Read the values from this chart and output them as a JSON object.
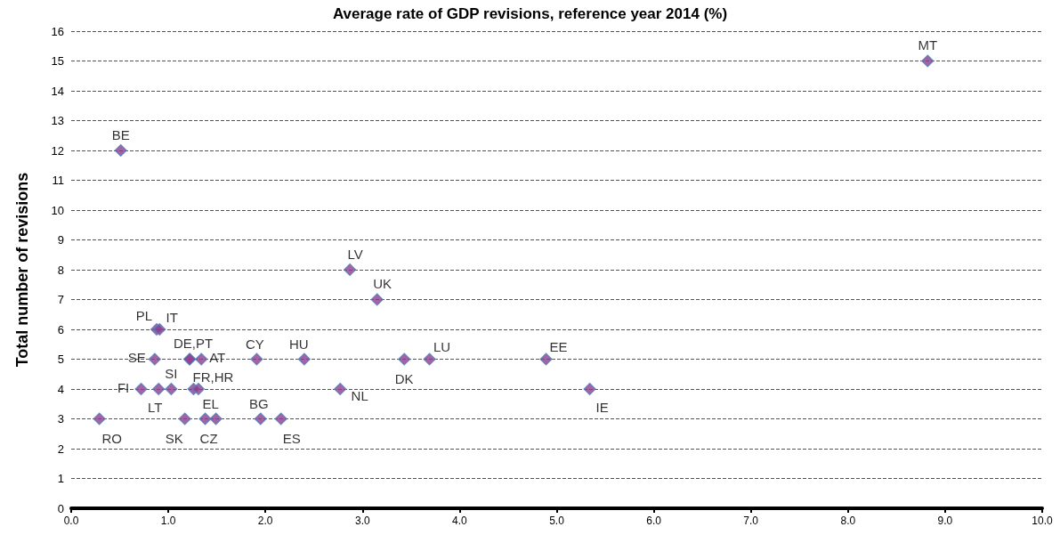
{
  "chart_data": {
    "type": "scatter",
    "title": "Average rate of GDP revisions, reference year 2014 (%)",
    "ylabel": "Total number of revisions",
    "x": [
      0.29,
      0.51,
      0.72,
      0.86,
      0.88,
      0.91,
      0.9,
      1.03,
      1.22,
      1.22,
      1.34,
      1.26,
      1.31,
      1.17,
      1.38,
      1.49,
      1.91,
      1.95,
      2.16,
      2.4,
      2.77,
      2.87,
      3.15,
      3.43,
      3.69,
      4.89,
      5.34,
      8.82
    ],
    "values": [
      3,
      12,
      4,
      5,
      6,
      6,
      4,
      4,
      5,
      5,
      5,
      4,
      4,
      3,
      3,
      3,
      5,
      3,
      3,
      5,
      4,
      8,
      7,
      5,
      5,
      5,
      4,
      15
    ],
    "value_labels": [
      "RO",
      "BE",
      "FI",
      "SE",
      "PL",
      "IT",
      "LT",
      "SI",
      "DE,PT",
      null,
      "AT",
      "FR,HR",
      null,
      "SK",
      "EL",
      "CZ",
      "CY",
      "BG",
      "ES",
      "HU",
      "NL",
      "LV",
      "UK",
      "DK",
      "LU",
      "EE",
      "IE",
      "MT"
    ],
    "color": "#8e3c8e",
    "marker": "diamond",
    "xlim": [
      0,
      10
    ],
    "xticks": [
      {
        "value": 0,
        "label": "0.0"
      },
      {
        "value": 1,
        "label": "1.0"
      },
      {
        "value": 2,
        "label": "2.0"
      },
      {
        "value": 3,
        "label": "3.0"
      },
      {
        "value": 4,
        "label": "4.0"
      },
      {
        "value": 5,
        "label": "5.0"
      },
      {
        "value": 6,
        "label": "6.0"
      },
      {
        "value": 7,
        "label": "7.0"
      },
      {
        "value": 8,
        "label": "8.0"
      },
      {
        "value": 9,
        "label": "9.0"
      },
      {
        "value": 10,
        "label": "10.0"
      }
    ],
    "ylim": [
      0,
      16
    ],
    "yticks": [
      0,
      1,
      2,
      3,
      4,
      5,
      6,
      7,
      8,
      9,
      10,
      11,
      12,
      13,
      14,
      15,
      16
    ],
    "grid": "y"
  }
}
